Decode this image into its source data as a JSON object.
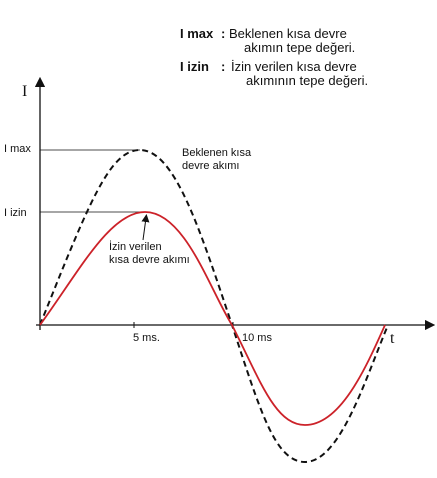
{
  "legend": [
    {
      "term": "I max",
      "separator": ":",
      "lines": [
        "Beklenen kısa devre",
        "akımın tepe değeri."
      ]
    },
    {
      "term": "I izin",
      "separator": ":",
      "lines": [
        "İzin verilen kısa devre",
        "akımının tepe değeri."
      ]
    }
  ],
  "axes": {
    "y_label": "I",
    "x_label": "t"
  },
  "levels": [
    "I max",
    "I izin"
  ],
  "time_ticks": [
    "5 ms.",
    "10 ms"
  ],
  "curves": [
    {
      "lines": [
        "Beklenen kısa",
        "devre akımı"
      ]
    },
    {
      "lines": [
        "İzin verilen",
        "kısa devre akımı"
      ]
    }
  ]
}
